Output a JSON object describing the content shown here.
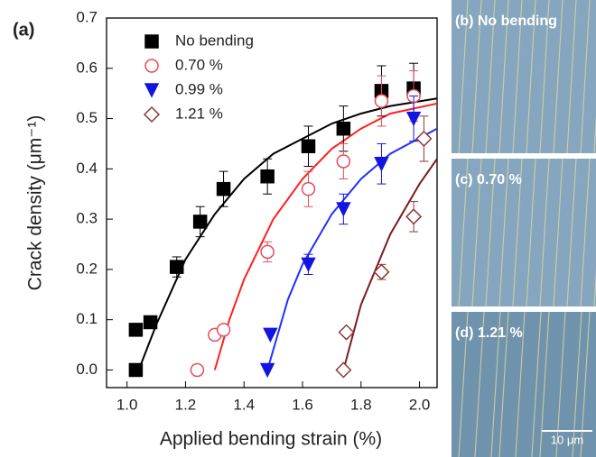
{
  "chart_data": {
    "type": "scatter",
    "panel_label": "(a)",
    "x_label": "Applied bending strain (%)",
    "y_label": "Crack density (μm⁻¹)",
    "xlim": [
      0.93,
      2.06
    ],
    "ylim": [
      -0.035,
      0.7
    ],
    "xticks": [
      {
        "value": 1.0,
        "label": "1.0"
      },
      1.2,
      1.4,
      1.6,
      1.8,
      {
        "value": 2.0,
        "label": "2.0"
      }
    ],
    "yticks": [
      {
        "value": 0,
        "label": "0.0"
      },
      0.1,
      0.2,
      0.3,
      0.4,
      0.5,
      0.6,
      0.7
    ],
    "series": [
      {
        "name": "No bending",
        "color": "#000000",
        "marker": "square",
        "filled": true,
        "x": [
          1.03,
          1.03,
          1.08,
          1.17,
          1.25,
          1.33,
          1.48,
          1.62,
          1.74,
          1.87,
          1.98
        ],
        "values": [
          0.0,
          0.08,
          0.095,
          0.205,
          0.295,
          0.36,
          0.385,
          0.445,
          0.48,
          0.555,
          0.56
        ],
        "errors": [
          0.0,
          0.0,
          0.0,
          0.02,
          0.03,
          0.035,
          0.035,
          0.04,
          0.045,
          0.05,
          0.05
        ]
      },
      {
        "name": "0.70 %",
        "color": "#e84a5a",
        "marker": "circle",
        "filled": false,
        "x": [
          1.24,
          1.3,
          1.33,
          1.48,
          1.62,
          1.74,
          1.87,
          1.98
        ],
        "values": [
          0.0,
          0.07,
          0.08,
          0.235,
          0.36,
          0.415,
          0.535,
          0.545
        ],
        "errors": [
          0.0,
          0.0,
          0.0,
          0.02,
          0.035,
          0.035,
          0.05,
          0.05
        ]
      },
      {
        "name": "0.99 %",
        "color": "#1414e0",
        "marker": "triangle-down",
        "filled": true,
        "x": [
          1.48,
          1.49,
          1.62,
          1.74,
          1.87,
          1.98
        ],
        "values": [
          0.0,
          0.07,
          0.21,
          0.32,
          0.41,
          0.5
        ],
        "errors": [
          0.0,
          0.0,
          0.02,
          0.03,
          0.04,
          0.045
        ]
      },
      {
        "name": "1.21 %",
        "color": "#8b3a3a",
        "marker": "diamond",
        "filled": false,
        "x": [
          1.74,
          1.75,
          1.87,
          1.98,
          2.015
        ],
        "values": [
          0.0,
          0.075,
          0.195,
          0.305,
          0.46
        ],
        "errors": [
          0.0,
          0.0,
          0.015,
          0.03,
          0.045
        ]
      }
    ],
    "fit_curves": [
      {
        "color": "#000000",
        "x": [
          1.04,
          1.1,
          1.2,
          1.3,
          1.4,
          1.5,
          1.6,
          1.7,
          1.8,
          1.9,
          2.06
        ],
        "values": [
          0,
          0.09,
          0.22,
          0.31,
          0.38,
          0.43,
          0.46,
          0.49,
          0.51,
          0.525,
          0.54
        ]
      },
      {
        "color": "#ff2020",
        "x": [
          1.3,
          1.35,
          1.4,
          1.5,
          1.6,
          1.7,
          1.8,
          1.9,
          2.06
        ],
        "values": [
          0,
          0.1,
          0.18,
          0.3,
          0.38,
          0.44,
          0.48,
          0.51,
          0.53
        ]
      },
      {
        "color": "#2030ff",
        "x": [
          1.48,
          1.55,
          1.6,
          1.7,
          1.8,
          1.9,
          2.06
        ],
        "values": [
          0,
          0.14,
          0.21,
          0.31,
          0.38,
          0.43,
          0.48
        ]
      },
      {
        "color": "#7b1d1d",
        "x": [
          1.74,
          1.8,
          1.85,
          1.9,
          2.0,
          2.06
        ],
        "values": [
          0,
          0.13,
          0.2,
          0.27,
          0.37,
          0.42
        ]
      }
    ]
  },
  "images": [
    {
      "label": "(b) No bending"
    },
    {
      "label": "(c) 0.70 %"
    },
    {
      "label": "(d) 1.21 %",
      "scale_bar": "10 μm"
    }
  ]
}
